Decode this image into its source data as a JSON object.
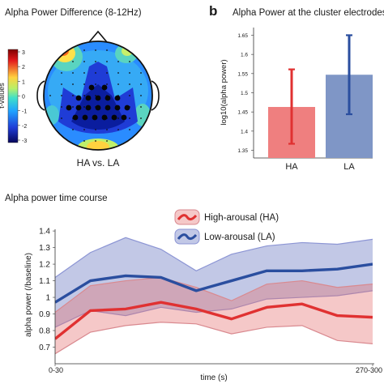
{
  "panel_a": {
    "title": "Alpha Power Difference (8-12Hz)",
    "colorbar_label": "t-values",
    "colorbar_ticks": [
      "3",
      "2",
      "1",
      "0",
      "-1",
      "-2",
      "-3"
    ],
    "caption": "HA vs. LA"
  },
  "panel_b": {
    "letter": "b",
    "title": "Alpha Power at the cluster electrodes"
  },
  "panel_c": {
    "title": "Alpha power time course"
  },
  "colors": {
    "ha": "#e03131",
    "ha_fill": "rgba(228,110,110,0.38)",
    "la": "#2a4e9f",
    "la_fill": "rgba(110,124,196,0.42)",
    "ha_bar": "#ef7f7f",
    "la_bar": "#7f96c6"
  },
  "chart_data": [
    {
      "type": "bar",
      "categories": [
        "HA",
        "LA"
      ],
      "values": [
        1.463,
        1.547
      ],
      "error_low": [
        1.367,
        1.444
      ],
      "error_high": [
        1.561,
        1.65
      ],
      "ylabel": "log10(alpha power)",
      "ylim": [
        1.33,
        1.67
      ],
      "yticks": [
        1.35,
        1.4,
        1.45,
        1.5,
        1.55,
        1.6,
        1.65
      ],
      "ytick_labels": [
        "1.35",
        "1.4",
        "1.45",
        "1.5",
        "1.55",
        "1.6",
        "1.65"
      ]
    },
    {
      "type": "line",
      "x": [
        1,
        2,
        3,
        4,
        5,
        6,
        7,
        8,
        9,
        10
      ],
      "xtick_labels": [
        "0-30",
        "270-300"
      ],
      "xlabel": "time (s)",
      "ylabel": "alpha power (/baseline)",
      "ylim": [
        0.6,
        1.42
      ],
      "yticks": [
        0.7,
        0.8,
        0.9,
        1.0,
        1.1,
        1.2,
        1.3,
        1.4
      ],
      "ytick_labels": [
        "0.7",
        "0.8",
        "0.9",
        "1",
        "1.1",
        "1.2",
        "1.3",
        "1.4"
      ],
      "legend_position": "top-center",
      "series": [
        {
          "name": "High-arousal (HA)",
          "values": [
            0.75,
            0.92,
            0.93,
            0.97,
            0.93,
            0.87,
            0.94,
            0.96,
            0.89,
            0.88
          ],
          "upper": [
            0.91,
            1.07,
            1.1,
            1.12,
            1.06,
            0.98,
            1.08,
            1.1,
            1.06,
            1.08
          ],
          "lower": [
            0.66,
            0.79,
            0.83,
            0.85,
            0.84,
            0.78,
            0.82,
            0.83,
            0.74,
            0.72
          ]
        },
        {
          "name": "Low-arousal (LA)",
          "values": [
            0.97,
            1.1,
            1.13,
            1.12,
            1.04,
            1.1,
            1.16,
            1.16,
            1.17,
            1.2
          ],
          "upper": [
            1.12,
            1.27,
            1.36,
            1.29,
            1.16,
            1.26,
            1.31,
            1.33,
            1.32,
            1.35
          ],
          "lower": [
            0.82,
            0.92,
            0.89,
            0.94,
            0.91,
            0.93,
            0.99,
            1.0,
            1.01,
            1.04
          ]
        }
      ]
    }
  ]
}
